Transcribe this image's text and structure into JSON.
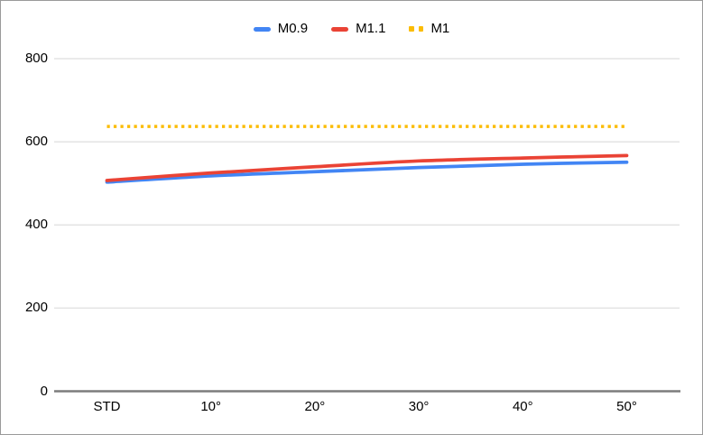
{
  "chart_data": {
    "type": "line",
    "title": "",
    "xlabel": "",
    "ylabel": "",
    "categories": [
      "STD",
      "10°",
      "20°",
      "30°",
      "40°",
      "50°"
    ],
    "series": [
      {
        "name": "M0.9",
        "color": "#4285F4",
        "style": "solid",
        "values": [
          503,
          518,
          528,
          538,
          546,
          551
        ]
      },
      {
        "name": "M1.1",
        "color": "#EA4335",
        "style": "solid",
        "values": [
          507,
          525,
          540,
          554,
          561,
          567
        ]
      },
      {
        "name": "M1",
        "color": "#FBBC04",
        "style": "dotted",
        "values": [
          637,
          637,
          637,
          637,
          637,
          637
        ]
      }
    ],
    "ylim": [
      0,
      800
    ],
    "yticks": [
      0,
      200,
      400,
      600,
      800
    ],
    "grid": true,
    "legend_position": "top-center",
    "gridline_color": "#e3e3e3",
    "axis_color": "#7d7d7d",
    "text_color": "#000000"
  }
}
